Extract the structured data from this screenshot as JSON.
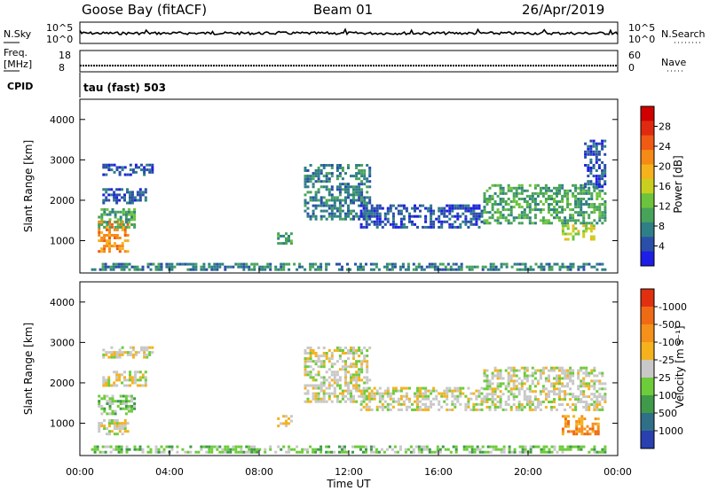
{
  "header": {
    "station": "Goose Bay (fitACF)",
    "beam": "Beam 01",
    "date": "26/Apr/2019"
  },
  "strips": {
    "nsky_label": "N.Sky",
    "nsky_ticks": [
      "10^5",
      "10^0"
    ],
    "nsearch_label": "N.Search",
    "nsearch_ticks": [
      "10^5",
      "10^0"
    ],
    "freq_label": "Freq.",
    "freq_unit": "[MHz]",
    "freq_ticks": [
      "18",
      "8"
    ],
    "nave_label": "Nave",
    "nave_ticks": [
      "60",
      "0"
    ],
    "cpid_label": "CPID",
    "cpid_text": "tau (fast) 503"
  },
  "chart_data": [
    {
      "type": "heatmap",
      "name": "power",
      "ylabel": "Slant Range [km]",
      "yticks": [
        "1000",
        "2000",
        "3000",
        "4000"
      ],
      "ylim": [
        200,
        4500
      ],
      "xlim": [
        0,
        24
      ],
      "colorbar": {
        "label": "Power [dB]",
        "ticks": [
          "4",
          "8",
          "12",
          "16",
          "20",
          "24",
          "28"
        ],
        "colors": [
          "#1e1ee6",
          "#2a4fa8",
          "#2f7f86",
          "#48a35a",
          "#6cc43c",
          "#c9cf1f",
          "#f5b21c",
          "#f58a16",
          "#ef5a14",
          "#e02a10",
          "#d00000"
        ]
      },
      "regions": [
        {
          "t0": 0.8,
          "t1": 2.2,
          "r0": 700,
          "r1": 1500,
          "level": 7
        },
        {
          "t0": 0.8,
          "t1": 2.5,
          "r0": 1300,
          "r1": 1800,
          "level": 3
        },
        {
          "t0": 1.0,
          "t1": 3.0,
          "r0": 1900,
          "r1": 2300,
          "level": 1
        },
        {
          "t0": 1.0,
          "t1": 3.3,
          "r0": 2600,
          "r1": 2900,
          "level": 1
        },
        {
          "t0": 8.8,
          "t1": 9.5,
          "r0": 900,
          "r1": 1200,
          "level": 3
        },
        {
          "t0": 10.0,
          "t1": 13.0,
          "r0": 1500,
          "r1": 2900,
          "level": 2
        },
        {
          "t0": 12.5,
          "t1": 18.0,
          "r0": 1300,
          "r1": 1900,
          "level": 1
        },
        {
          "t0": 18.0,
          "t1": 23.5,
          "r0": 1400,
          "r1": 2400,
          "level": 3
        },
        {
          "t0": 21.5,
          "t1": 23.0,
          "r0": 1000,
          "r1": 1400,
          "level": 5
        },
        {
          "t0": 22.5,
          "t1": 23.5,
          "r0": 2300,
          "r1": 3500,
          "level": 1
        },
        {
          "t0": 0.5,
          "t1": 23.5,
          "r0": 250,
          "r1": 450,
          "level": 2
        }
      ]
    },
    {
      "type": "heatmap",
      "name": "velocity",
      "ylabel": "Slant Range [km]",
      "yticks": [
        "1000",
        "2000",
        "3000",
        "4000"
      ],
      "ylim": [
        200,
        4500
      ],
      "xlim": [
        0,
        24
      ],
      "xticks": [
        "00:00",
        "04:00",
        "08:00",
        "12:00",
        "16:00",
        "20:00",
        "00:00"
      ],
      "xlabel": "Time UT",
      "colorbar": {
        "label": "Velocity [m s⁻¹]",
        "ticks": [
          "1000",
          "500",
          "100",
          "25",
          "-25",
          "-100",
          "-500",
          "-1000"
        ],
        "colors": [
          "#2a3fb0",
          "#2f6f88",
          "#3f9a4a",
          "#6dcc3a",
          "#c8c8c8",
          "#f5b21c",
          "#f5901a",
          "#ef6a14",
          "#e03010"
        ]
      },
      "regions": [
        {
          "t0": 0.8,
          "t1": 2.2,
          "r0": 700,
          "r1": 1100,
          "level": 4
        },
        {
          "t0": 0.8,
          "t1": 2.5,
          "r0": 1200,
          "r1": 1700,
          "level": 3
        },
        {
          "t0": 1.0,
          "t1": 3.0,
          "r0": 1900,
          "r1": 2300,
          "level": 4
        },
        {
          "t0": 1.0,
          "t1": 3.3,
          "r0": 2600,
          "r1": 2900,
          "level": 4
        },
        {
          "t0": 8.8,
          "t1": 9.5,
          "r0": 900,
          "r1": 1200,
          "level": 5
        },
        {
          "t0": 10.0,
          "t1": 13.0,
          "r0": 1500,
          "r1": 2900,
          "level": 4
        },
        {
          "t0": 12.5,
          "t1": 18.0,
          "r0": 1300,
          "r1": 1900,
          "level": 4
        },
        {
          "t0": 18.0,
          "t1": 23.5,
          "r0": 1300,
          "r1": 2400,
          "level": 4
        },
        {
          "t0": 21.5,
          "t1": 23.2,
          "r0": 700,
          "r1": 1200,
          "level": 6
        },
        {
          "t0": 0.5,
          "t1": 23.5,
          "r0": 250,
          "r1": 450,
          "level": 3
        }
      ]
    }
  ]
}
